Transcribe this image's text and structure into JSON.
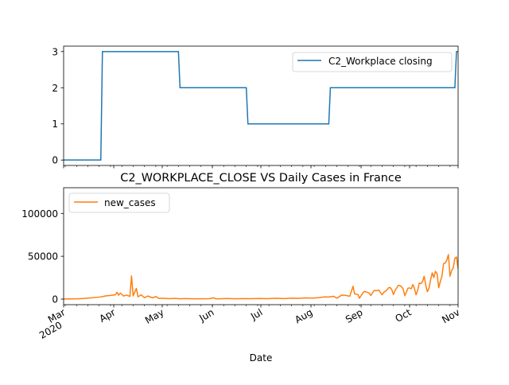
{
  "chart_data": [
    {
      "type": "line",
      "title": "",
      "xlabel": "",
      "ylabel": "",
      "ylim": [
        -0.15,
        3.15
      ],
      "yticks": [
        0,
        1,
        2,
        3
      ],
      "legend_placement": "upper-right",
      "grid": false,
      "series": [
        {
          "name": "C2_Workplace closing",
          "color": "#1f77b4",
          "points": [
            [
              "2020-03-01",
              0
            ],
            [
              "2020-03-24",
              0
            ],
            [
              "2020-03-25",
              3
            ],
            [
              "2020-05-11",
              3
            ],
            [
              "2020-05-12",
              2
            ],
            [
              "2020-06-22",
              2
            ],
            [
              "2020-06-23",
              1
            ],
            [
              "2020-08-12",
              1
            ],
            [
              "2020-08-13",
              2
            ],
            [
              "2020-10-29",
              2
            ],
            [
              "2020-10-30",
              3
            ],
            [
              "2020-10-31",
              3
            ]
          ]
        }
      ]
    },
    {
      "type": "line",
      "title": "C2_WORKPLACE_CLOSE VS Daily Cases in France",
      "xlabel": "Date",
      "ylabel": "",
      "ylim": [
        -6500,
        130000
      ],
      "yticks": [
        0,
        50000,
        100000
      ],
      "ytick_labels": [
        "0",
        "50000",
        "100000"
      ],
      "xlim": [
        "2020-03-01",
        "2020-10-31"
      ],
      "xticks": [
        {
          "date": "2020-03-01",
          "label": "Mar",
          "sublabel": "2020"
        },
        {
          "date": "2020-04-01",
          "label": "Apr"
        },
        {
          "date": "2020-05-01",
          "label": "May"
        },
        {
          "date": "2020-06-01",
          "label": "Jun"
        },
        {
          "date": "2020-07-01",
          "label": "Jul"
        },
        {
          "date": "2020-08-01",
          "label": "Aug"
        },
        {
          "date": "2020-09-01",
          "label": "Sep"
        },
        {
          "date": "2020-10-01",
          "label": "Oct"
        },
        {
          "date": "2020-11-01",
          "label": "Nov"
        }
      ],
      "legend_placement": "upper-left",
      "grid": false,
      "series": [
        {
          "name": "new_cases",
          "color": "#ff7f0e",
          "points": [
            [
              "2020-03-01",
              100
            ],
            [
              "2020-03-10",
              400
            ],
            [
              "2020-03-15",
              900
            ],
            [
              "2020-03-20",
              1800
            ],
            [
              "2020-03-24",
              2500
            ],
            [
              "2020-03-27",
              3700
            ],
            [
              "2020-03-30",
              4300
            ],
            [
              "2020-04-02",
              5000
            ],
            [
              "2020-04-03",
              8000
            ],
            [
              "2020-04-04",
              4500
            ],
            [
              "2020-04-05",
              7000
            ],
            [
              "2020-04-07",
              3600
            ],
            [
              "2020-04-09",
              4700
            ],
            [
              "2020-04-11",
              3100
            ],
            [
              "2020-04-12",
              27000
            ],
            [
              "2020-04-13",
              3800
            ],
            [
              "2020-04-15",
              12500
            ],
            [
              "2020-04-16",
              2700
            ],
            [
              "2020-04-18",
              5000
            ],
            [
              "2020-04-20",
              1500
            ],
            [
              "2020-04-22",
              3600
            ],
            [
              "2020-04-25",
              1500
            ],
            [
              "2020-04-27",
              3000
            ],
            [
              "2020-04-29",
              700
            ],
            [
              "2020-05-01",
              1000
            ],
            [
              "2020-05-05",
              500
            ],
            [
              "2020-05-09",
              800
            ],
            [
              "2020-05-12",
              300
            ],
            [
              "2020-05-15",
              600
            ],
            [
              "2020-05-20",
              400
            ],
            [
              "2020-05-25",
              300
            ],
            [
              "2020-05-30",
              500
            ],
            [
              "2020-06-02",
              1500
            ],
            [
              "2020-06-03",
              400
            ],
            [
              "2020-06-06",
              300
            ],
            [
              "2020-06-10",
              700
            ],
            [
              "2020-06-15",
              400
            ],
            [
              "2020-06-20",
              600
            ],
            [
              "2020-06-25",
              500
            ],
            [
              "2020-06-30",
              700
            ],
            [
              "2020-07-05",
              500
            ],
            [
              "2020-07-10",
              900
            ],
            [
              "2020-07-15",
              600
            ],
            [
              "2020-07-20",
              1000
            ],
            [
              "2020-07-25",
              900
            ],
            [
              "2020-07-28",
              1400
            ],
            [
              "2020-08-02",
              1200
            ],
            [
              "2020-08-06",
              1700
            ],
            [
              "2020-08-09",
              2500
            ],
            [
              "2020-08-12",
              2400
            ],
            [
              "2020-08-15",
              3300
            ],
            [
              "2020-08-17",
              1000
            ],
            [
              "2020-08-20",
              4700
            ],
            [
              "2020-08-22",
              4500
            ],
            [
              "2020-08-25",
              3300
            ],
            [
              "2020-08-27",
              15000
            ],
            [
              "2020-08-28",
              6000
            ],
            [
              "2020-08-30",
              5400
            ],
            [
              "2020-08-31",
              1000
            ],
            [
              "2020-09-02",
              7000
            ],
            [
              "2020-09-03",
              8900
            ],
            [
              "2020-09-04",
              8500
            ],
            [
              "2020-09-06",
              7000
            ],
            [
              "2020-09-07",
              4200
            ],
            [
              "2020-09-09",
              10000
            ],
            [
              "2020-09-11",
              9900
            ],
            [
              "2020-09-12",
              10500
            ],
            [
              "2020-09-14",
              5000
            ],
            [
              "2020-09-15",
              7900
            ],
            [
              "2020-09-17",
              10600
            ],
            [
              "2020-09-18",
              13200
            ],
            [
              "2020-09-19",
              13500
            ],
            [
              "2020-09-20",
              11000
            ],
            [
              "2020-09-21",
              5300
            ],
            [
              "2020-09-22",
              10000
            ],
            [
              "2020-09-23",
              13000
            ],
            [
              "2020-09-24",
              16000
            ],
            [
              "2020-09-25",
              15800
            ],
            [
              "2020-09-26",
              14400
            ],
            [
              "2020-09-27",
              12000
            ],
            [
              "2020-09-28",
              4000
            ],
            [
              "2020-09-29",
              8000
            ],
            [
              "2020-09-30",
              12800
            ],
            [
              "2020-10-01",
              13000
            ],
            [
              "2020-10-02",
              12100
            ],
            [
              "2020-10-03",
              16900
            ],
            [
              "2020-10-04",
              12600
            ],
            [
              "2020-10-05",
              5000
            ],
            [
              "2020-10-06",
              10500
            ],
            [
              "2020-10-07",
              18700
            ],
            [
              "2020-10-08",
              18100
            ],
            [
              "2020-10-09",
              20300
            ],
            [
              "2020-10-10",
              26700
            ],
            [
              "2020-10-11",
              16100
            ],
            [
              "2020-10-12",
              8500
            ],
            [
              "2020-10-13",
              12900
            ],
            [
              "2020-10-14",
              22600
            ],
            [
              "2020-10-15",
              30600
            ],
            [
              "2020-10-16",
              25100
            ],
            [
              "2020-10-17",
              32400
            ],
            [
              "2020-10-18",
              29800
            ],
            [
              "2020-10-19",
              13200
            ],
            [
              "2020-10-20",
              20500
            ],
            [
              "2020-10-21",
              26700
            ],
            [
              "2020-10-22",
              41600
            ],
            [
              "2020-10-23",
              42000
            ],
            [
              "2020-10-24",
              45400
            ],
            [
              "2020-10-25",
              52000
            ],
            [
              "2020-10-26",
              26800
            ],
            [
              "2020-10-27",
              33400
            ],
            [
              "2020-10-28",
              36400
            ],
            [
              "2020-10-29",
              47600
            ],
            [
              "2020-10-30",
              49200
            ],
            [
              "2020-10-31",
              35600
            ]
          ]
        }
      ]
    }
  ]
}
